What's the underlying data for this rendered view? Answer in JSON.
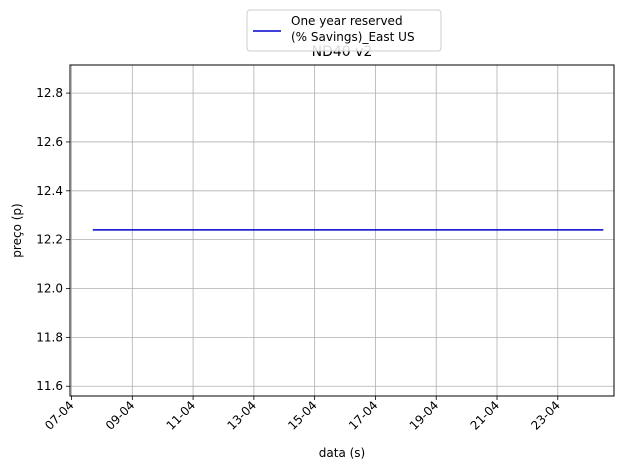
{
  "chart_data": {
    "type": "line",
    "title": "ND40 v2",
    "xlabel": "data (s)",
    "ylabel": "preço (p)",
    "x_tick_labels": [
      "07-04",
      "09-04",
      "11-04",
      "13-04",
      "15-04",
      "17-04",
      "19-04",
      "21-04",
      "23-04"
    ],
    "x_tick_days": [
      7,
      9,
      11,
      13,
      15,
      17,
      19,
      21,
      23
    ],
    "xlim_days": [
      6.95,
      24.85
    ],
    "y_ticks": [
      "11.6",
      "11.8",
      "12.0",
      "12.2",
      "12.4",
      "12.6",
      "12.8"
    ],
    "ylim": [
      11.56,
      12.915
    ],
    "grid": true,
    "legend_position": "top-center",
    "series": [
      {
        "name": "One year reserved\n(% Savings)_East US",
        "color": "#0000cc",
        "x": [
          "07-04",
          "24-04"
        ],
        "x_days": [
          7.7,
          24.5
        ],
        "y": [
          12.24,
          12.24
        ]
      }
    ]
  }
}
